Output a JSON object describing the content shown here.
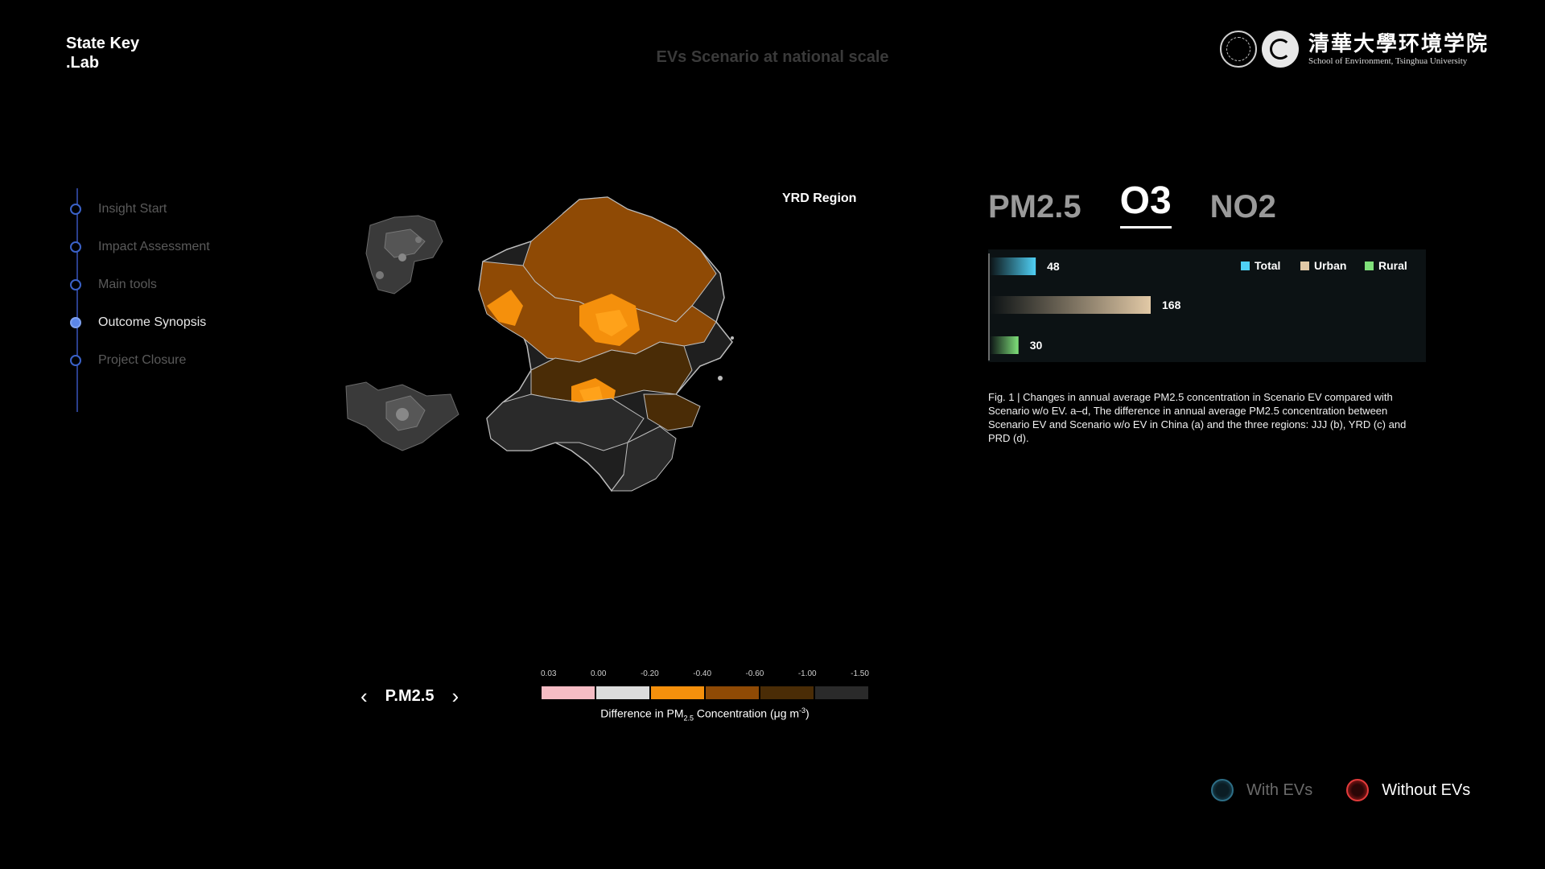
{
  "brand": {
    "line1": "State Key",
    "line2": ".Lab"
  },
  "page_title": "EVs Scenario at national scale",
  "logo": {
    "cn": "清華大學环境学院",
    "en": "School of Environment, Tsinghua University"
  },
  "nav": {
    "items": [
      {
        "label": "Insight Start",
        "active": false
      },
      {
        "label": "Impact Assessment",
        "active": false
      },
      {
        "label": "Main tools",
        "active": false
      },
      {
        "label": "Outcome Synopsis",
        "active": true
      },
      {
        "label": "Project Closure",
        "active": false
      }
    ]
  },
  "map": {
    "region_label": "YRD Region"
  },
  "pager": {
    "label": "P.M2.5",
    "prev_icon": "chevron-left-icon",
    "next_icon": "chevron-right-icon"
  },
  "legend": {
    "ticks": [
      "0.03",
      "0.00",
      "-0.20",
      "-0.40",
      "-0.60",
      "-1.00",
      "-1.50"
    ],
    "colors": [
      "#f6bcc4",
      "#dcdcdc",
      "#f5900c",
      "#8f4a05",
      "#4a2c06",
      "#2a2a2a"
    ],
    "title_prefix": "Difference in PM",
    "title_sub": "2.5",
    "title_mid": " Concentration (μg m",
    "title_sup": "-3",
    "title_suffix": ")"
  },
  "tabs": [
    {
      "label": "PM2.5",
      "active": false
    },
    {
      "label": "O3",
      "active": true
    },
    {
      "label": "NO2",
      "active": false
    }
  ],
  "chart_data": {
    "type": "bar",
    "orientation": "horizontal",
    "categories": [
      "Total",
      "Urban",
      "Rural"
    ],
    "values": [
      48,
      168,
      30
    ],
    "colors": [
      "#4fd0f5",
      "#e2c9a6",
      "#7fe07a"
    ],
    "legend": [
      "Total",
      "Urban",
      "Rural"
    ],
    "legend_position": "top-right",
    "xlim": [
      0,
      168
    ]
  },
  "caption": "Fig. 1 | Changes in annual average PM2.5 concentration in Scenario EV compared with Scenario w/o EV. a–d, The difference in annual average PM2.5 concentration between Scenario EV and Scenario w/o EV in China (a) and the three regions: JJJ (b), YRD (c) and PRD (d).",
  "toggle": {
    "items": [
      {
        "label": "With EVs",
        "active": false,
        "color": "#2d6e86"
      },
      {
        "label": "Without EVs",
        "active": true,
        "color": "#e23b3b"
      }
    ]
  }
}
